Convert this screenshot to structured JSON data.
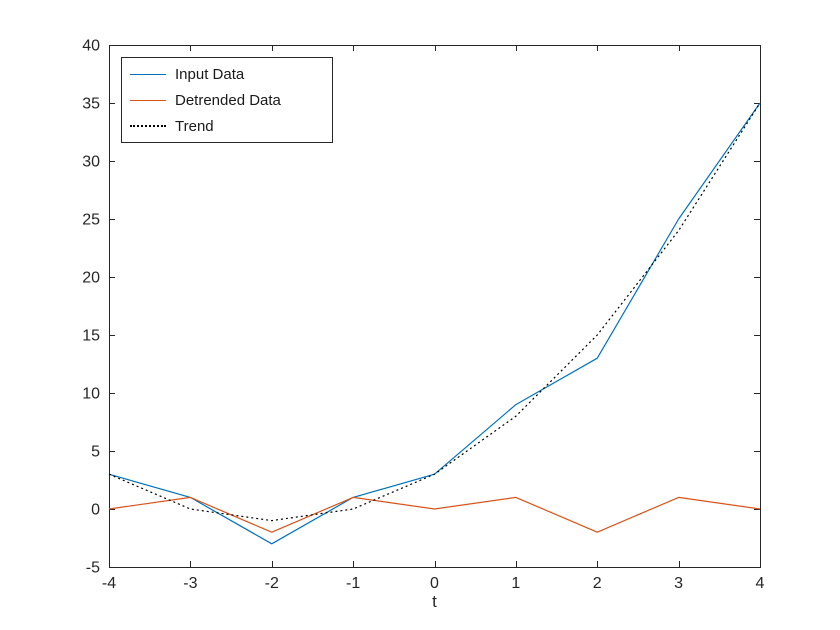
{
  "chart_data": {
    "type": "line",
    "title": "",
    "xlabel": "t",
    "ylabel": "",
    "x": [
      -4,
      -3,
      -2,
      -1,
      0,
      1,
      2,
      3,
      4
    ],
    "series": [
      {
        "name": "Input Data",
        "color": "#0072BD",
        "style": "solid",
        "values": [
          3,
          1,
          -3,
          1,
          3,
          9,
          13,
          25,
          35
        ]
      },
      {
        "name": "Detrended Data",
        "color": "#D95319",
        "style": "solid",
        "values": [
          0,
          1,
          -2,
          1,
          0,
          1,
          -2,
          1,
          0
        ]
      },
      {
        "name": "Trend",
        "color": "#000000",
        "style": "dotted",
        "values": [
          3,
          0,
          -1,
          0,
          3,
          8,
          15,
          24,
          35
        ]
      }
    ],
    "xlim": [
      -4,
      4
    ],
    "ylim": [
      -5,
      40
    ],
    "xticks": [
      -4,
      -3,
      -2,
      -1,
      0,
      1,
      2,
      3,
      4
    ],
    "yticks": [
      -5,
      0,
      5,
      10,
      15,
      20,
      25,
      30,
      35,
      40
    ],
    "grid": false,
    "legend_position": "top-left",
    "axis_color": "#262626",
    "background_color": "#ffffff"
  }
}
